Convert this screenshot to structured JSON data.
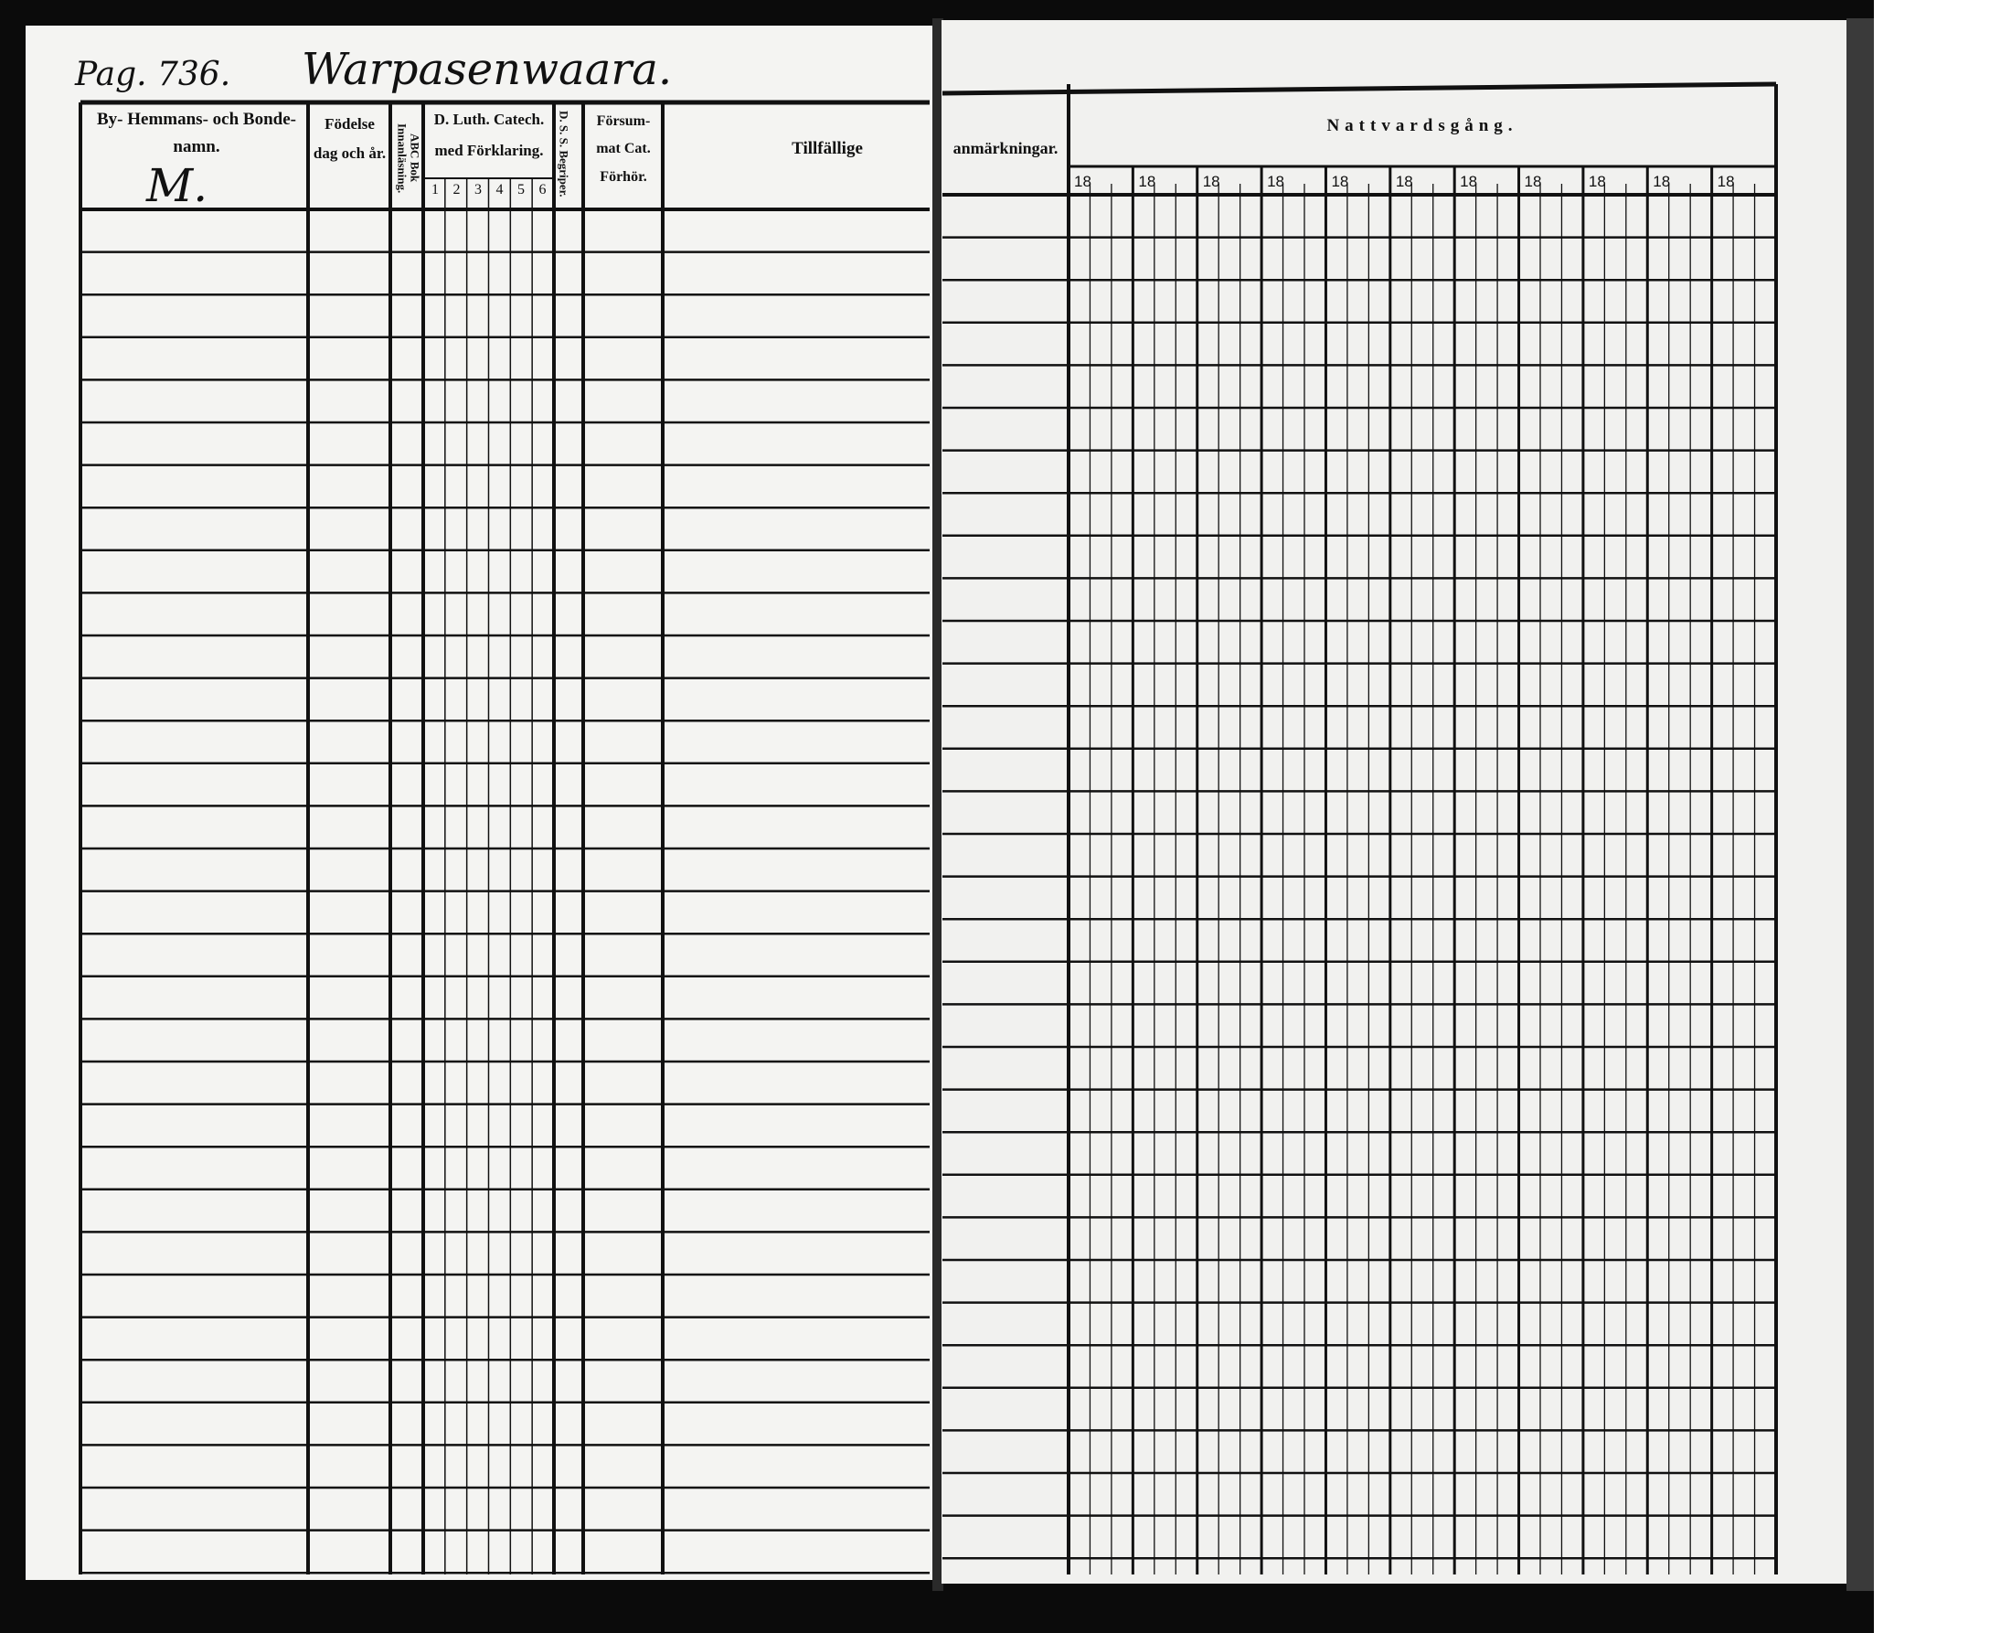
{
  "document": {
    "page_label": "Pag. 736.",
    "place_name": "Warpasenwaara.",
    "letter_mark": "M."
  },
  "left_page": {
    "columns": {
      "name": "By- Hemmans- och Bonde-namn.",
      "birth": "Födelse dag och år.",
      "abc": "ABC Bok Innanläsning.",
      "catechism": "D. Luth. Catech. med Förklaring.",
      "catechism_parts": [
        "1",
        "2",
        "3",
        "4",
        "5",
        "6"
      ],
      "ds": "D. S. S. Begriper.",
      "missed": "Försum- mat Cat. Förhör.",
      "remarks_left": "Tillfällige"
    }
  },
  "right_page": {
    "remarks_right": "anmärkningar.",
    "communion": "Nattvardsgång.",
    "year_prefixes": [
      "18",
      "18",
      "18",
      "18",
      "18",
      "18",
      "18",
      "18",
      "18",
      "18",
      "18"
    ]
  }
}
